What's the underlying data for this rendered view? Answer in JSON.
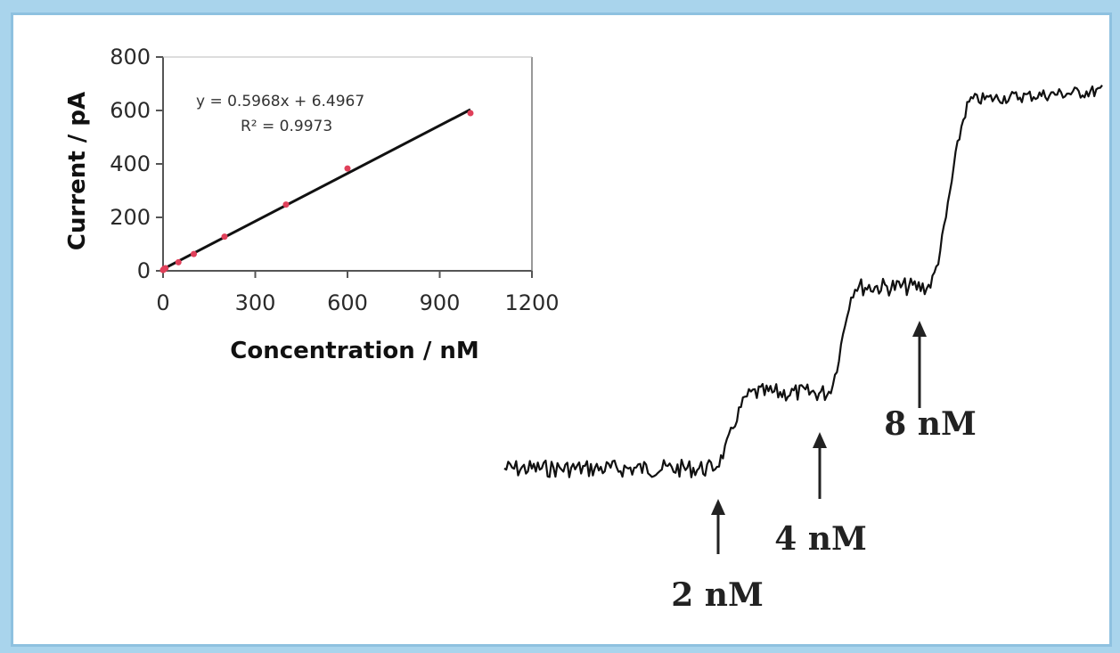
{
  "chart_data": [
    {
      "type": "scatter",
      "title": "",
      "xlabel": "Concentration / nM",
      "ylabel": "Current / pA",
      "xlim": [
        0,
        1200
      ],
      "ylim": [
        0,
        800
      ],
      "xticks": [
        "0",
        "300",
        "600",
        "900",
        "1200"
      ],
      "yticks": [
        "0",
        "200",
        "400",
        "600",
        "800"
      ],
      "grid": false,
      "series": [
        {
          "x": [
            0,
            2,
            4,
            8,
            50,
            100,
            200,
            400,
            600,
            1000
          ],
          "y": [
            3,
            5,
            8,
            10,
            32,
            63,
            128,
            248,
            383,
            590
          ],
          "color": "#e0405a"
        }
      ],
      "fit_line": {
        "slope": 0.5968,
        "intercept": 6.4967,
        "x_range": [
          0,
          1000
        ],
        "color": "#111111"
      },
      "annotations": {
        "equation": "y = 0.5968x + 6.4967",
        "r_squared": "R² = 0.9973"
      }
    },
    {
      "type": "line",
      "title": "",
      "xlabel": "",
      "ylabel": "",
      "levels": [
        0,
        1,
        2,
        3,
        4
      ],
      "annotations": [
        {
          "label": "2 nM"
        },
        {
          "label": "4 nM"
        },
        {
          "label": "8 nM"
        }
      ],
      "color": "#111111"
    }
  ]
}
